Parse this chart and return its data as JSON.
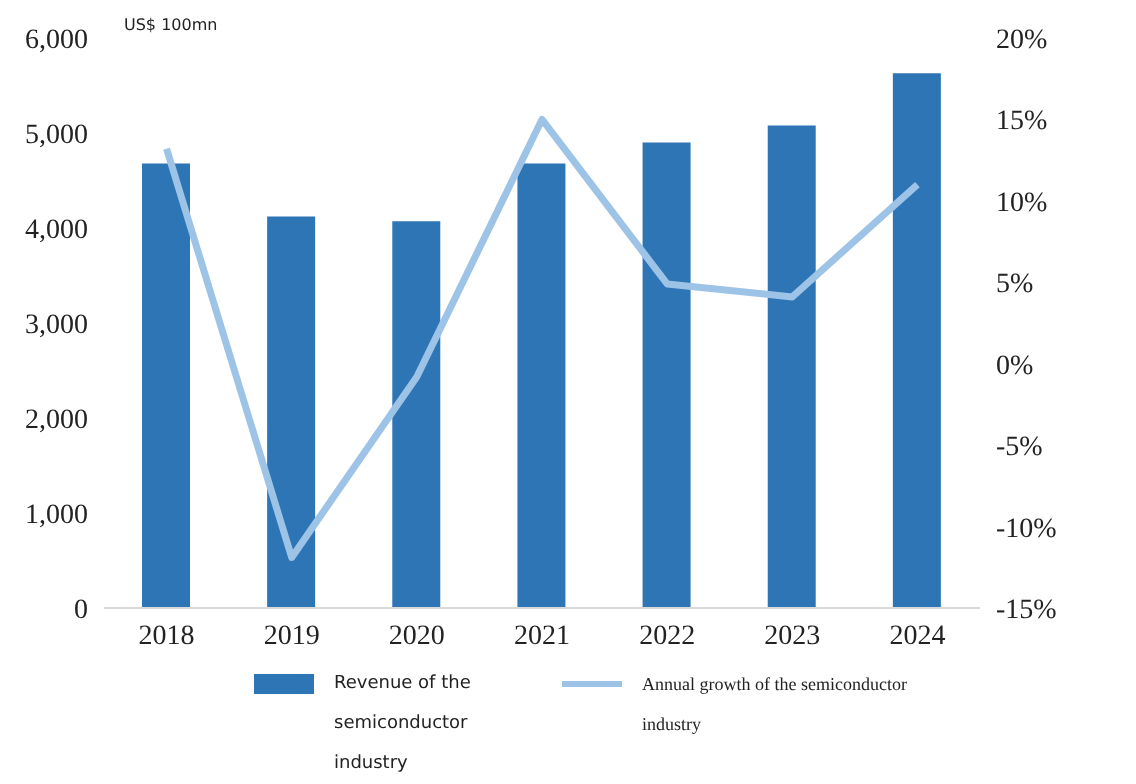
{
  "chart_data": {
    "type": "bar",
    "ylabel": "US$ 100mn",
    "categories": [
      "2018",
      "2019",
      "2020",
      "2021",
      "2022",
      "2023",
      "2024"
    ],
    "series": [
      {
        "name": "Revenue of the semiconductor industry",
        "color": "#2e75b6",
        "values": [
          4680,
          4120,
          4070,
          4680,
          4900,
          5080,
          5630
        ]
      },
      {
        "name": "Annual growth of the semiconductor industry",
        "type": "line",
        "axis": "y2",
        "color": "#9dc3e6",
        "values": [
          13.2,
          -11.9,
          -0.8,
          15.0,
          4.9,
          4.1,
          11.0
        ]
      }
    ],
    "ylim": [
      0,
      6000
    ],
    "yticks": [
      0,
      {
        "value": 1000,
        "label": "1,000"
      },
      {
        "value": 2000,
        "label": "2,000"
      },
      {
        "value": 3000,
        "label": "3,000"
      },
      {
        "value": 4000,
        "label": "4,000"
      },
      {
        "value": 5000,
        "label": "5,000"
      },
      {
        "value": 6000,
        "label": "6,000"
      }
    ],
    "y2lim": [
      -15,
      20
    ],
    "y2ticks": [
      {
        "value": -15,
        "label": "-15%"
      },
      {
        "value": -10,
        "label": "-10%"
      },
      {
        "value": -5,
        "label": "-5%"
      },
      {
        "value": 0,
        "label": "0%"
      },
      {
        "value": 5,
        "label": "5%"
      },
      {
        "value": 10,
        "label": "10%"
      },
      {
        "value": 15,
        "label": "15%"
      },
      {
        "value": 20,
        "label": "20%"
      }
    ],
    "marker": "none",
    "legend": "bottom",
    "grid": false
  }
}
